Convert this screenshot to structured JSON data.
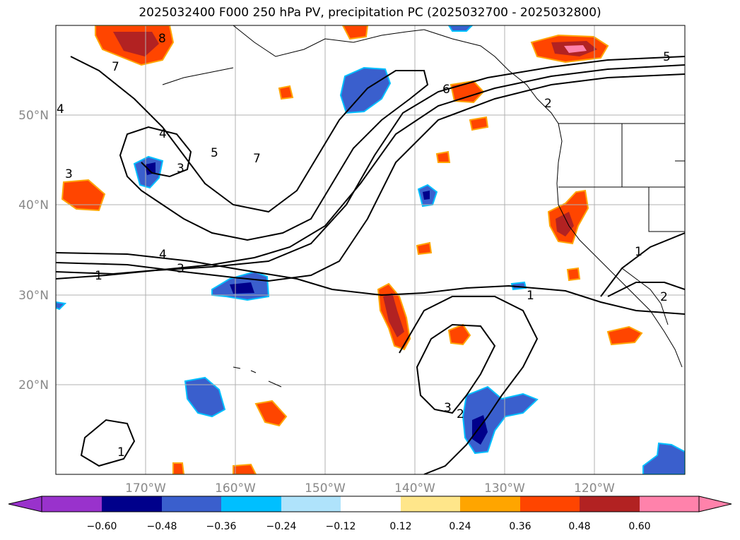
{
  "title": "2025032400 F000 250 hPa PV, precipitation PC (2025032700 - 2025032800)",
  "lat_labels": [
    "50°N",
    "40°N",
    "30°N",
    "20°N"
  ],
  "lon_labels": [
    "170°W",
    "160°W",
    "150°W",
    "140°W",
    "130°W",
    "120°W"
  ],
  "colorbar": {
    "ticks": [
      "−0.60",
      "−0.48",
      "−0.36",
      "−0.24",
      "−0.12",
      "0.12",
      "0.24",
      "0.36",
      "0.48",
      "0.60"
    ],
    "colors": [
      "#9932cc",
      "#00008b",
      "#3a5fcd",
      "#00bfff",
      "#afe3fb",
      "#ffffff",
      "#ffe68a",
      "#ffa500",
      "#ff4500",
      "#b22222",
      "#ff82ab"
    ]
  },
  "contour_labels": [
    "8",
    "7",
    "6",
    "5",
    "4",
    "3",
    "2",
    "1"
  ],
  "colors": {
    "blue_dark": "#00008b",
    "blue_mid": "#3a5fcd",
    "blue_light": "#00bfff",
    "orange": "#ff4500",
    "orange_light": "#ffa500",
    "red": "#b22222",
    "pink": "#ff82ab",
    "yellow": "#ffe68a"
  }
}
